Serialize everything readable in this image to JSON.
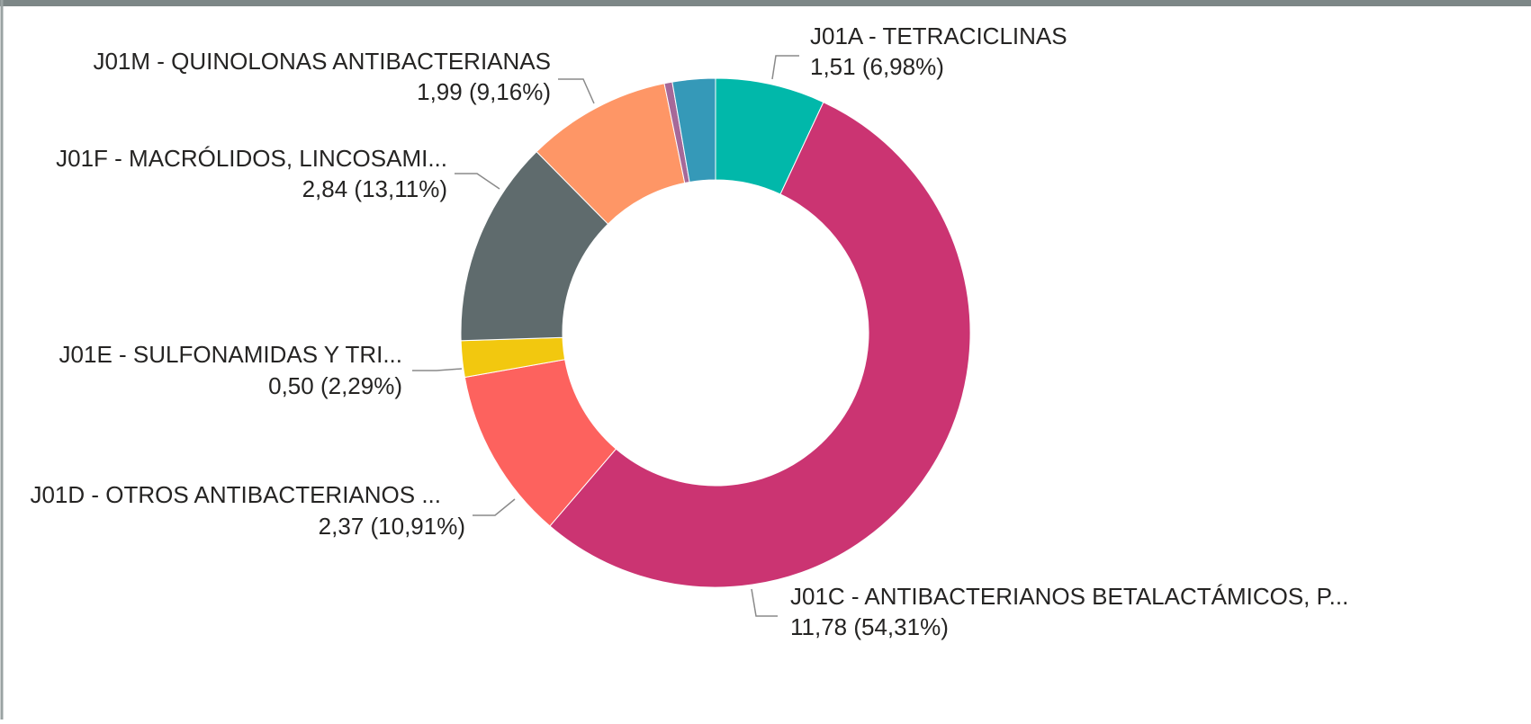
{
  "chart_data": {
    "type": "donut",
    "categories": [
      "J01A - TETRACICLINAS",
      "J01C - ANTIBACTERIANOS BETALACTÁMICOS, P...",
      "J01D - OTROS ANTIBACTERIANOS ...",
      "J01E - SULFONAMIDAS Y TRI...",
      "J01F - MACRÓLIDOS, LINCOSAMI...",
      "J01M - QUINOLONAS ANTIBACTERIANAS",
      null,
      null
    ],
    "values": [
      1.51,
      11.78,
      2.37,
      0.5,
      2.84,
      1.99,
      0.11,
      0.59
    ],
    "value_labels": [
      "1,51 (6,98%)",
      "11,78 (54,31%)",
      "2,37 (10,91%)",
      "0,50 (2,29%)",
      "2,84 (13,11%)",
      "1,99 (9,16%)",
      null,
      null
    ],
    "colors": [
      "#01B8AA",
      "#CB3472",
      "#FD625E",
      "#F2C80F",
      "#5F6B6D",
      "#FE9666",
      "#A66999",
      "#3599B8"
    ]
  }
}
